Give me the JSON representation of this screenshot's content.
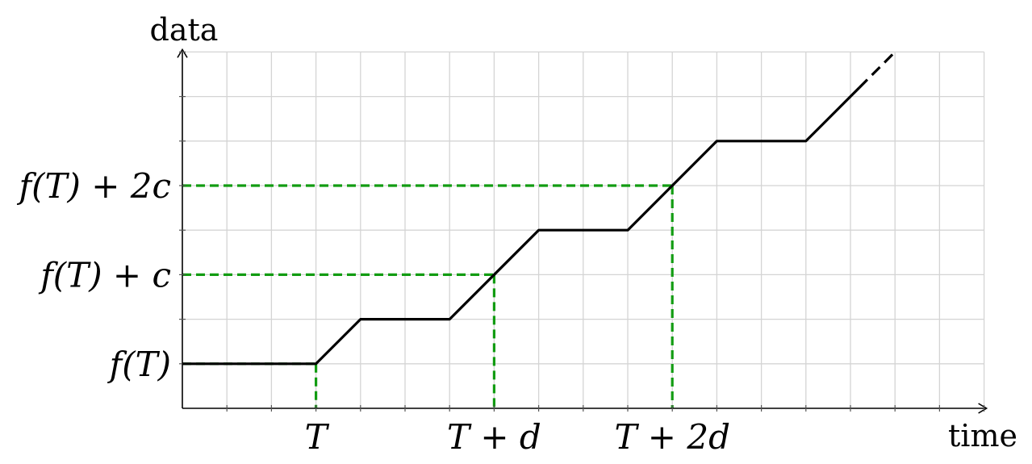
{
  "chart_data": {
    "type": "line",
    "xlabel": "time",
    "ylabel": "data",
    "grid": true,
    "xlim": [
      0,
      18
    ],
    "ylim": [
      0,
      8
    ],
    "x_ticks": [
      {
        "x": 3,
        "label": "T"
      },
      {
        "x": 7,
        "label": "T + d"
      },
      {
        "x": 11,
        "label": "T + 2d"
      }
    ],
    "y_ticks": [
      {
        "y": 1,
        "label": "f(T)"
      },
      {
        "y": 3,
        "label": "f(T) + c"
      },
      {
        "y": 5,
        "label": "f(T) + 2c"
      }
    ],
    "series": [
      {
        "style": "solid",
        "color": "#000000",
        "x": [
          0,
          3,
          4,
          6,
          8,
          10,
          12,
          14,
          15.2
        ],
        "y": [
          1,
          1,
          2,
          2,
          4,
          4,
          6,
          6,
          7.2
        ]
      },
      {
        "style": "dashed",
        "color": "#000000",
        "x": [
          15.2,
          16
        ],
        "y": [
          7.2,
          8
        ]
      }
    ],
    "guides": [
      {
        "x": 3,
        "y": 1
      },
      {
        "x": 7,
        "y": 3
      },
      {
        "x": 11,
        "y": 5
      }
    ],
    "guide_color": "#129c12"
  }
}
